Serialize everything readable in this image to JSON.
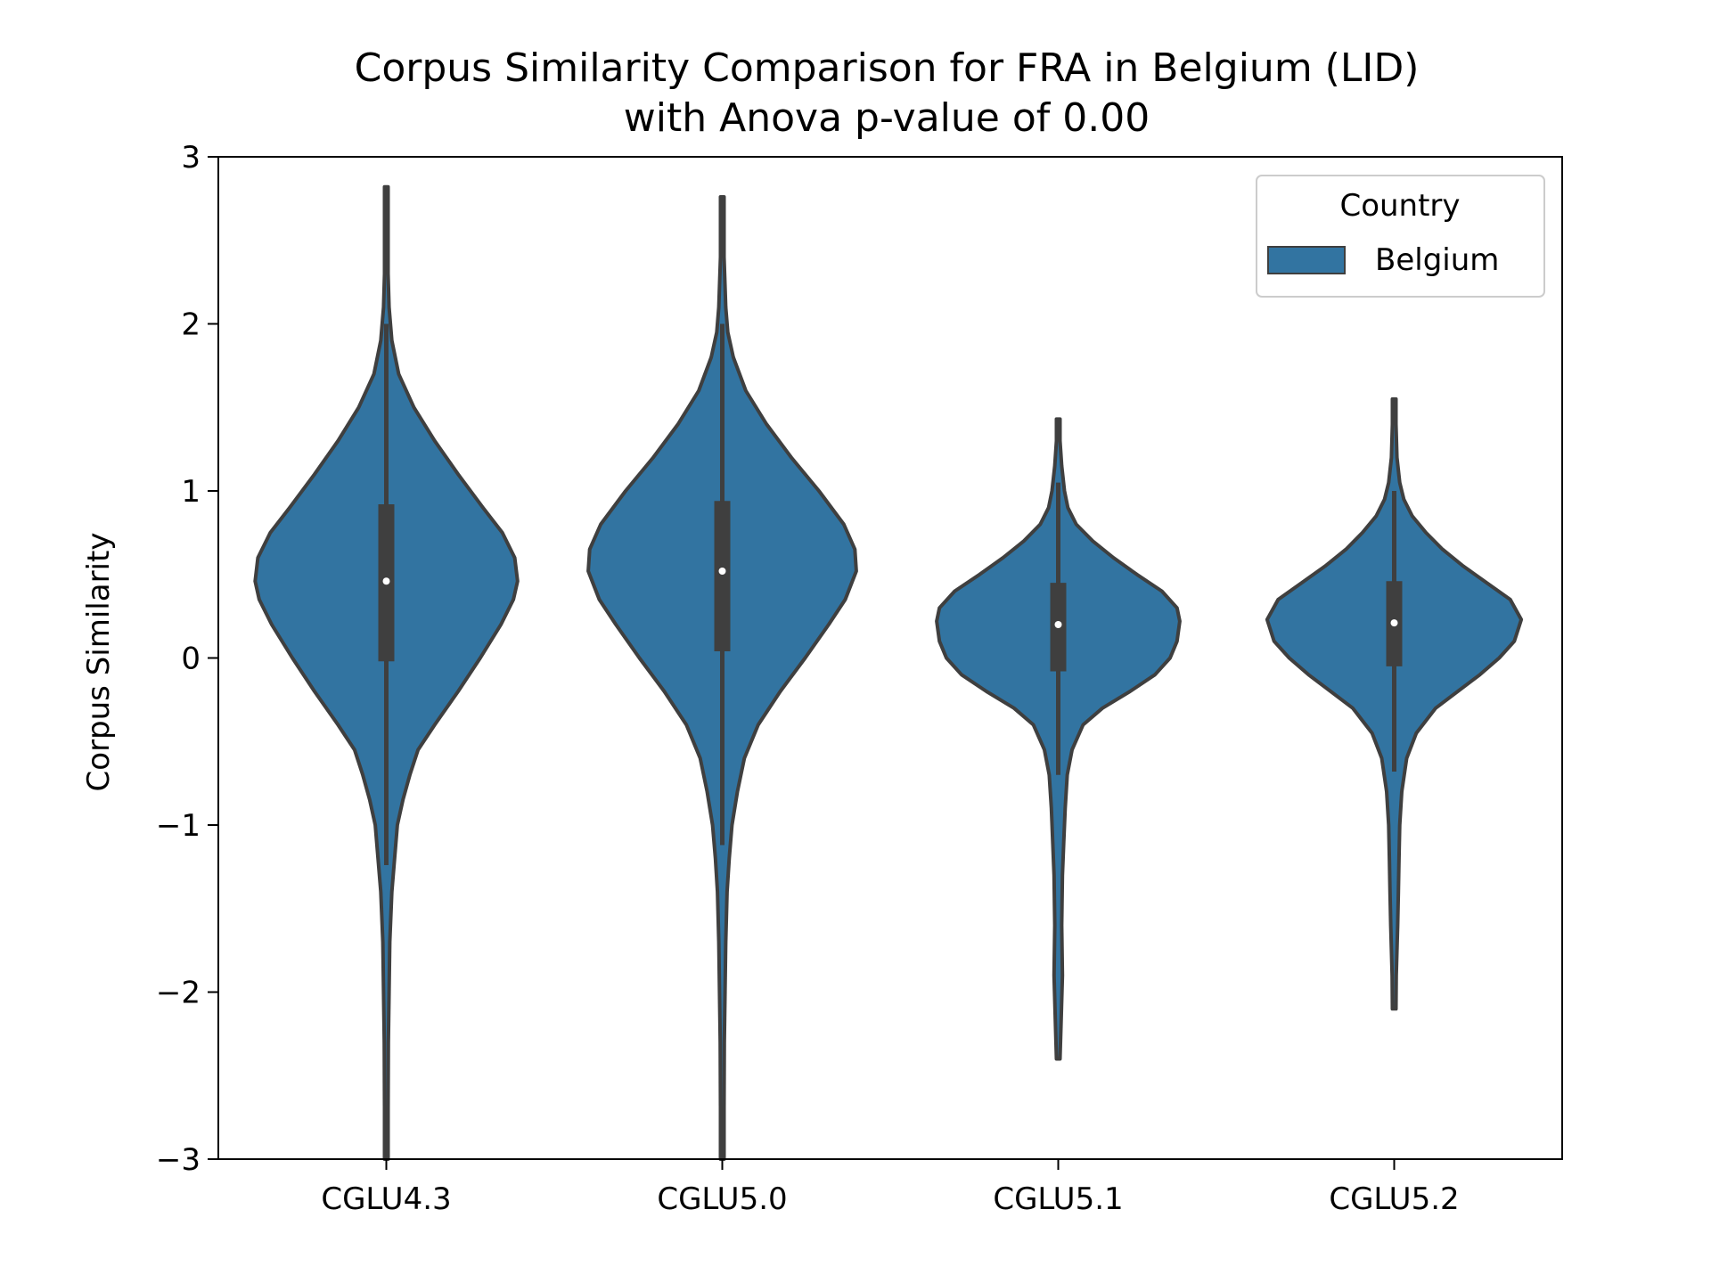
{
  "chart_data": {
    "type": "violin",
    "title": "Corpus Similarity Comparison for FRA in Belgium (LID)",
    "subtitle": "with Anova p-value of 0.00",
    "xlabel": "",
    "ylabel": "Corpus Similarity",
    "ylim": [
      -3,
      3
    ],
    "yticks": [
      -3,
      -2,
      -1,
      0,
      1,
      2,
      3
    ],
    "ytick_labels": [
      "−3",
      "−2",
      "−1",
      "0",
      "1",
      "2",
      "3"
    ],
    "categories": [
      "CGLU4.3",
      "CGLU5.0",
      "CGLU5.1",
      "CGLU5.2"
    ],
    "legend": {
      "title": "Country",
      "entries": [
        "Belgium"
      ],
      "placement": "top-right"
    },
    "colors": {
      "fill": "#3274a1",
      "edge": "#3f3f3f",
      "median": "#ffffff",
      "frame": "#000000"
    },
    "series": [
      {
        "name": "Belgium",
        "violins": [
          {
            "category": "CGLU4.3",
            "median": 0.46,
            "q1": -0.02,
            "q3": 0.92,
            "whisker_low": -1.24,
            "whisker_high": 2.0,
            "min": -3.0,
            "max": 2.82,
            "density": [
              [
                -3.0,
                0.0
              ],
              [
                -2.7,
                0.01
              ],
              [
                -2.3,
                0.015
              ],
              [
                -2.0,
                0.02
              ],
              [
                -1.7,
                0.025
              ],
              [
                -1.4,
                0.04
              ],
              [
                -1.2,
                0.06
              ],
              [
                -1.0,
                0.08
              ],
              [
                -0.85,
                0.12
              ],
              [
                -0.7,
                0.17
              ],
              [
                -0.55,
                0.23
              ],
              [
                -0.4,
                0.35
              ],
              [
                -0.2,
                0.52
              ],
              [
                0.0,
                0.68
              ],
              [
                0.2,
                0.83
              ],
              [
                0.35,
                0.92
              ],
              [
                0.46,
                0.95
              ],
              [
                0.6,
                0.93
              ],
              [
                0.75,
                0.84
              ],
              [
                0.9,
                0.7
              ],
              [
                1.1,
                0.52
              ],
              [
                1.3,
                0.35
              ],
              [
                1.5,
                0.2
              ],
              [
                1.7,
                0.09
              ],
              [
                1.9,
                0.04
              ],
              [
                2.1,
                0.02
              ],
              [
                2.3,
                0.013
              ],
              [
                2.6,
                0.01
              ],
              [
                2.82,
                0.0
              ]
            ]
          },
          {
            "category": "CGLU5.0",
            "median": 0.52,
            "q1": 0.04,
            "q3": 0.94,
            "whisker_low": -1.12,
            "whisker_high": 2.0,
            "min": -3.0,
            "max": 2.76,
            "density": [
              [
                -3.0,
                0.0
              ],
              [
                -2.7,
                0.01
              ],
              [
                -2.3,
                0.015
              ],
              [
                -2.0,
                0.02
              ],
              [
                -1.7,
                0.025
              ],
              [
                -1.4,
                0.035
              ],
              [
                -1.2,
                0.05
              ],
              [
                -1.0,
                0.07
              ],
              [
                -0.8,
                0.11
              ],
              [
                -0.6,
                0.16
              ],
              [
                -0.4,
                0.26
              ],
              [
                -0.2,
                0.42
              ],
              [
                0.0,
                0.6
              ],
              [
                0.2,
                0.77
              ],
              [
                0.35,
                0.89
              ],
              [
                0.52,
                0.97
              ],
              [
                0.65,
                0.96
              ],
              [
                0.8,
                0.88
              ],
              [
                1.0,
                0.7
              ],
              [
                1.2,
                0.5
              ],
              [
                1.4,
                0.32
              ],
              [
                1.6,
                0.17
              ],
              [
                1.8,
                0.08
              ],
              [
                1.95,
                0.04
              ],
              [
                2.1,
                0.025
              ],
              [
                2.4,
                0.012
              ],
              [
                2.76,
                0.0
              ]
            ]
          },
          {
            "category": "CGLU5.1",
            "median": 0.2,
            "q1": -0.08,
            "q3": 0.45,
            "whisker_low": -0.7,
            "whisker_high": 1.05,
            "min": -2.4,
            "max": 1.43,
            "density": [
              [
                -2.4,
                0.0
              ],
              [
                -2.2,
                0.02
              ],
              [
                -1.9,
                0.03
              ],
              [
                -1.6,
                0.025
              ],
              [
                -1.3,
                0.03
              ],
              [
                -1.1,
                0.04
              ],
              [
                -0.9,
                0.05
              ],
              [
                -0.7,
                0.065
              ],
              [
                -0.55,
                0.1
              ],
              [
                -0.4,
                0.18
              ],
              [
                -0.3,
                0.32
              ],
              [
                -0.2,
                0.52
              ],
              [
                -0.1,
                0.7
              ],
              [
                0.0,
                0.81
              ],
              [
                0.1,
                0.86
              ],
              [
                0.22,
                0.88
              ],
              [
                0.3,
                0.86
              ],
              [
                0.4,
                0.75
              ],
              [
                0.5,
                0.57
              ],
              [
                0.6,
                0.4
              ],
              [
                0.7,
                0.25
              ],
              [
                0.8,
                0.13
              ],
              [
                0.9,
                0.07
              ],
              [
                1.0,
                0.045
              ],
              [
                1.15,
                0.025
              ],
              [
                1.3,
                0.013
              ],
              [
                1.43,
                0.0
              ]
            ]
          },
          {
            "category": "CGLU5.2",
            "median": 0.21,
            "q1": -0.05,
            "q3": 0.46,
            "whisker_low": -0.68,
            "whisker_high": 1.0,
            "min": -2.1,
            "max": 1.55,
            "density": [
              [
                -2.1,
                0.0
              ],
              [
                -1.9,
                0.015
              ],
              [
                -1.6,
                0.025
              ],
              [
                -1.4,
                0.03
              ],
              [
                -1.2,
                0.035
              ],
              [
                -1.0,
                0.04
              ],
              [
                -0.8,
                0.055
              ],
              [
                -0.6,
                0.09
              ],
              [
                -0.45,
                0.16
              ],
              [
                -0.3,
                0.3
              ],
              [
                -0.2,
                0.46
              ],
              [
                -0.1,
                0.62
              ],
              [
                0.0,
                0.76
              ],
              [
                0.1,
                0.87
              ],
              [
                0.23,
                0.92
              ],
              [
                0.35,
                0.84
              ],
              [
                0.45,
                0.67
              ],
              [
                0.55,
                0.5
              ],
              [
                0.65,
                0.35
              ],
              [
                0.75,
                0.23
              ],
              [
                0.85,
                0.13
              ],
              [
                0.95,
                0.07
              ],
              [
                1.05,
                0.04
              ],
              [
                1.2,
                0.02
              ],
              [
                1.4,
                0.01
              ],
              [
                1.55,
                0.0
              ]
            ]
          }
        ]
      }
    ]
  }
}
